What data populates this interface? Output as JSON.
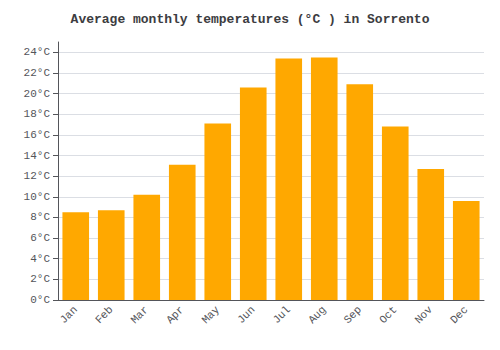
{
  "chart_data": {
    "type": "bar",
    "title": "Average monthly temperatures (°C ) in Sorrento",
    "categories": [
      "Jan",
      "Feb",
      "Mar",
      "Apr",
      "May",
      "Jun",
      "Jul",
      "Aug",
      "Sep",
      "Oct",
      "Nov",
      "Dec"
    ],
    "values": [
      8.5,
      8.7,
      10.2,
      13.1,
      17.1,
      20.6,
      23.4,
      23.5,
      20.9,
      16.8,
      12.7,
      9.6
    ],
    "color": "#FFA800",
    "ylim": [
      0,
      25
    ],
    "yticks": [
      {
        "value": 0,
        "label": "0°C"
      },
      {
        "value": 2,
        "label": "2°C"
      },
      {
        "value": 4,
        "label": "4°C"
      },
      {
        "value": 6,
        "label": "6°C"
      },
      {
        "value": 8,
        "label": "8°C"
      },
      {
        "value": 10,
        "label": "10°C"
      },
      {
        "value": 12,
        "label": "12°C"
      },
      {
        "value": 14,
        "label": "14°C"
      },
      {
        "value": 16,
        "label": "16°C"
      },
      {
        "value": 18,
        "label": "18°C"
      },
      {
        "value": 20,
        "label": "20°C"
      },
      {
        "value": 22,
        "label": "22°C"
      },
      {
        "value": 24,
        "label": "24°C"
      }
    ],
    "grid": true
  }
}
